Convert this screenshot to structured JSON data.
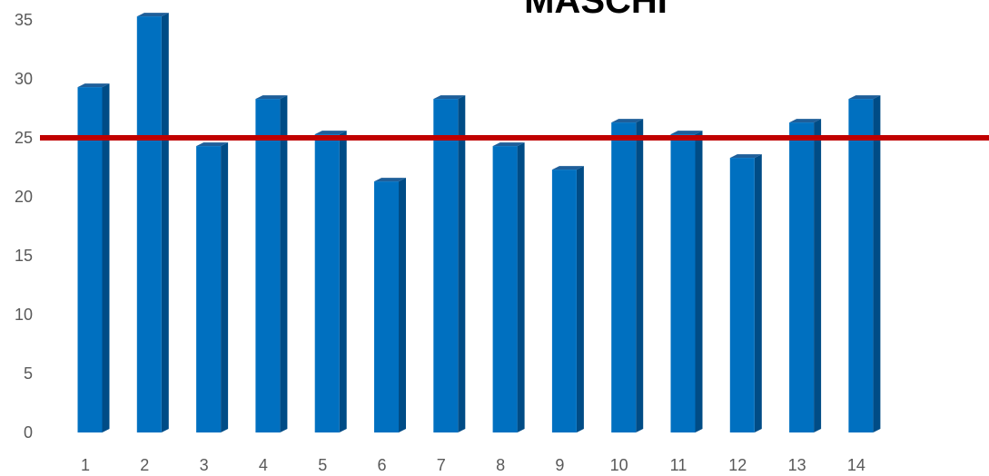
{
  "chart_data": {
    "type": "bar",
    "title": "MASCHI",
    "xlabel": "",
    "ylabel": "",
    "categories": [
      "1",
      "2",
      "3",
      "4",
      "5",
      "6",
      "7",
      "8",
      "9",
      "10",
      "11",
      "12",
      "13",
      "14"
    ],
    "series": [
      {
        "values": [
          29.3,
          35.3,
          24.3,
          28.3,
          25.3,
          21.3,
          28.3,
          24.3,
          22.3,
          26.3,
          25.3,
          23.3,
          26.3,
          28.3
        ]
      }
    ],
    "yticks": [
      "0",
      "5",
      "10",
      "15",
      "20",
      "25",
      "30",
      "35"
    ],
    "ylim": [
      0,
      35
    ],
    "reference_line": {
      "value": 25
    },
    "grid": false,
    "legend": "none",
    "colors": {
      "bar_front": "#0070C0",
      "bar_side": "#004C86",
      "bar_top": "#1F5F9A",
      "reference_line": "#C00000"
    }
  }
}
